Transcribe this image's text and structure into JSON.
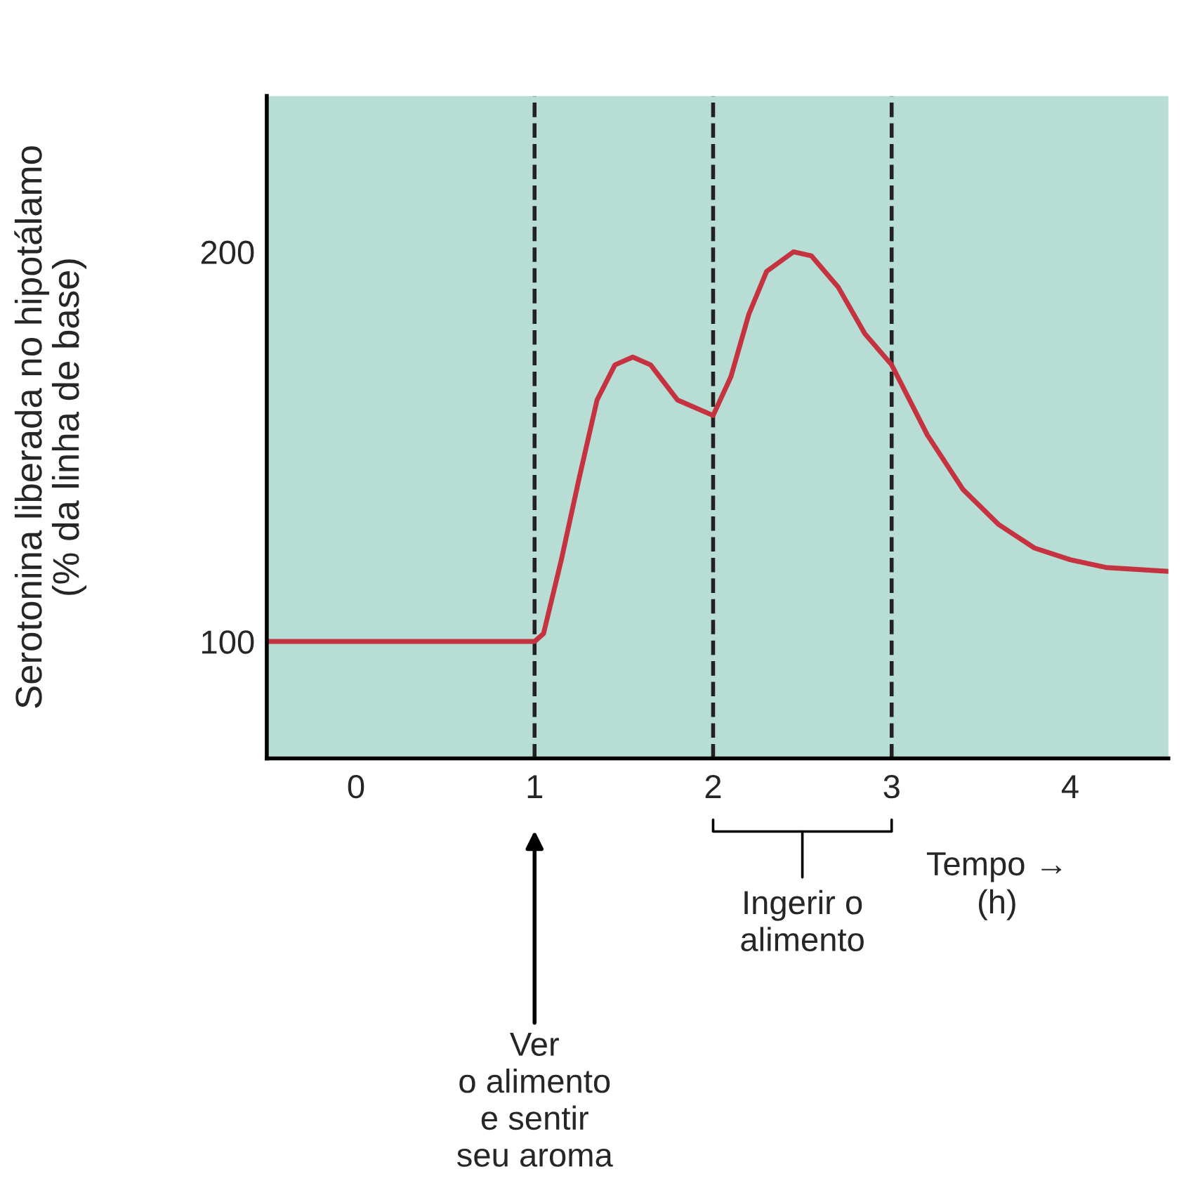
{
  "chart_data": {
    "type": "line",
    "xlabel": "Tempo →\n(h)",
    "ylabel": "Serotonina liberada no hipotálamo\n(% da linha de base)",
    "x": [
      -0.5,
      0,
      0.5,
      1.0,
      1.05,
      1.15,
      1.25,
      1.35,
      1.45,
      1.55,
      1.65,
      1.8,
      2.0,
      2.1,
      2.2,
      2.3,
      2.45,
      2.55,
      2.7,
      2.85,
      3.0,
      3.2,
      3.4,
      3.6,
      3.8,
      4.0,
      4.2,
      4.55
    ],
    "series": [
      {
        "color": "#c4333f",
        "values": [
          100,
          100,
          100,
          100,
          102,
          121,
          142,
          162,
          171,
          173,
          171,
          162,
          158,
          168,
          184,
          195,
          200,
          199,
          191,
          179,
          171,
          153,
          139,
          130,
          124,
          121,
          119,
          118
        ]
      }
    ],
    "xlim": [
      -0.5,
      4.55
    ],
    "ylim": [
      70,
      240
    ],
    "xticks": [
      0,
      1,
      2,
      3,
      4
    ],
    "yticks": [
      100,
      200
    ],
    "grid": false,
    "marker": "none",
    "line_style": "solid",
    "ref_lines": [
      {
        "axis": "x",
        "value": 1,
        "color": "#222222",
        "line_style": "dashed"
      },
      {
        "axis": "x",
        "value": 2,
        "color": "#222222",
        "line_style": "dashed"
      },
      {
        "axis": "x",
        "value": 3,
        "color": "#222222",
        "line_style": "dashed"
      }
    ],
    "annotations": [
      "Ver\no alimento\ne sentir\nseu aroma",
      "Ingerir o\nalimento"
    ]
  }
}
